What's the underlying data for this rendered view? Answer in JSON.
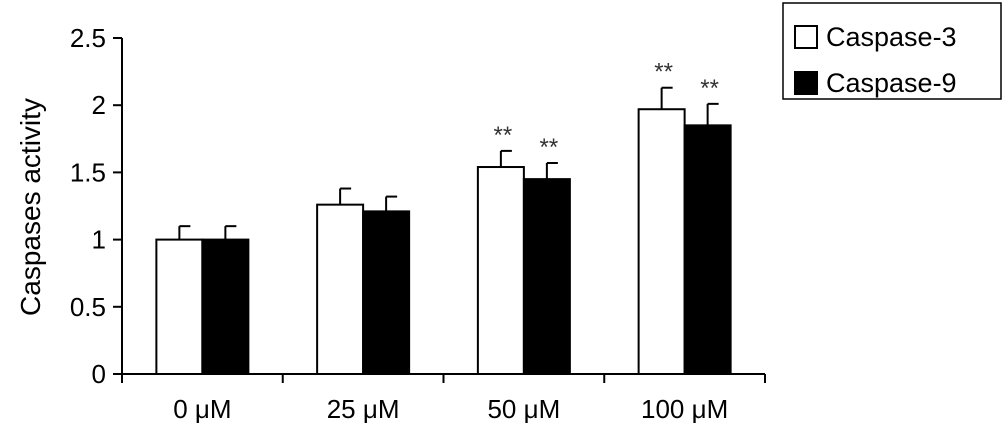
{
  "chart_data": {
    "type": "bar",
    "categories": [
      "0 μM",
      "25 μM",
      "50 μM",
      "100 μM"
    ],
    "series": [
      {
        "name": "Caspase-3",
        "color": "#ffffff",
        "values": [
          1.0,
          1.26,
          1.54,
          1.97
        ],
        "errors": [
          0.1,
          0.12,
          0.12,
          0.16
        ],
        "annotations": [
          "",
          "",
          "**",
          "**"
        ]
      },
      {
        "name": "Caspase-9",
        "color": "#000000",
        "values": [
          1.0,
          1.21,
          1.45,
          1.85
        ],
        "errors": [
          0.1,
          0.11,
          0.12,
          0.16
        ],
        "annotations": [
          "",
          "",
          "**",
          "**"
        ]
      }
    ],
    "ylabel": "Caspases activity",
    "xlabel": "",
    "ylim": [
      0,
      2.5
    ],
    "yticks": [
      "0",
      "0.5",
      "1",
      "1.5",
      "2",
      "2.5"
    ],
    "ytick_values": [
      0,
      0.5,
      1,
      1.5,
      2,
      2.5
    ],
    "grid": false,
    "legend_position": "top-right"
  }
}
